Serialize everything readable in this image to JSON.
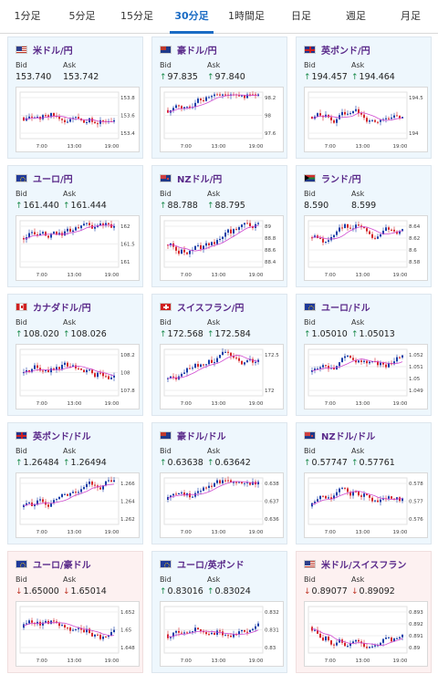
{
  "tabs": [
    "1分足",
    "5分足",
    "15分足",
    "30分足",
    "1時間足",
    "日足",
    "週足",
    "月足"
  ],
  "active_tab": 3,
  "labels": {
    "bid": "Bid",
    "ask": "Ask"
  },
  "x_ticks": [
    "7:00",
    "13:00",
    "19:00"
  ],
  "cards": [
    {
      "pair": "米ドル/円",
      "flag": "us",
      "dir": "none",
      "bid": "153.740",
      "ask": "153.742",
      "yticks": [
        "153.8",
        "153.6",
        "153.4"
      ]
    },
    {
      "pair": "豪ドル/円",
      "flag": "au",
      "dir": "up",
      "bid": "97.835",
      "ask": "97.840",
      "yticks": [
        "98.2",
        "98",
        "97.6"
      ]
    },
    {
      "pair": "英ポンド/円",
      "flag": "gb",
      "dir": "up",
      "bid": "194.457",
      "ask": "194.464",
      "yticks": [
        "194.5",
        "194"
      ]
    },
    {
      "pair": "ユーロ/円",
      "flag": "eu",
      "dir": "up",
      "bid": "161.440",
      "ask": "161.444",
      "yticks": [
        "162",
        "161.5",
        "161"
      ]
    },
    {
      "pair": "NZドル/円",
      "flag": "nz",
      "dir": "up",
      "bid": "88.788",
      "ask": "88.795",
      "yticks": [
        "89",
        "88.8",
        "88.6",
        "88.4"
      ]
    },
    {
      "pair": "ランド/円",
      "flag": "za",
      "dir": "none",
      "bid": "8.590",
      "ask": "8.599",
      "yticks": [
        "8.64",
        "8.62",
        "8.6",
        "8.58"
      ]
    },
    {
      "pair": "カナダドル/円",
      "flag": "ca",
      "dir": "up",
      "bid": "108.020",
      "ask": "108.026",
      "yticks": [
        "108.2",
        "108",
        "107.8"
      ]
    },
    {
      "pair": "スイスフラン/円",
      "flag": "ch",
      "dir": "up",
      "bid": "172.568",
      "ask": "172.584",
      "yticks": [
        "172.5",
        "172"
      ]
    },
    {
      "pair": "ユーロ/ドル",
      "flag": "eu",
      "dir": "up",
      "bid": "1.05010",
      "ask": "1.05013",
      "yticks": [
        "1.052",
        "1.051",
        "1.05",
        "1.049"
      ]
    },
    {
      "pair": "英ポンド/ドル",
      "flag": "gb",
      "dir": "up",
      "bid": "1.26484",
      "ask": "1.26494",
      "yticks": [
        "1.266",
        "1.264",
        "1.262"
      ]
    },
    {
      "pair": "豪ドル/ドル",
      "flag": "au",
      "dir": "up",
      "bid": "0.63638",
      "ask": "0.63642",
      "yticks": [
        "0.638",
        "0.637",
        "0.636"
      ]
    },
    {
      "pair": "NZドル/ドル",
      "flag": "nz",
      "dir": "up",
      "bid": "0.57747",
      "ask": "0.57761",
      "yticks": [
        "0.578",
        "0.577",
        "0.576"
      ]
    },
    {
      "pair": "ユーロ/豪ドル",
      "flag": "eu",
      "dir": "down",
      "bid": "1.65000",
      "ask": "1.65014",
      "yticks": [
        "1.652",
        "1.65",
        "1.648"
      ]
    },
    {
      "pair": "ユーロ/英ポンド",
      "flag": "eu",
      "dir": "up",
      "bid": "0.83016",
      "ask": "0.83024",
      "yticks": [
        "0.832",
        "0.831",
        "0.83"
      ]
    },
    {
      "pair": "米ドル/スイスフラン",
      "flag": "us",
      "dir": "down",
      "bid": "0.89077",
      "ask": "0.89092",
      "yticks": [
        "0.893",
        "0.892",
        "0.891",
        "0.89"
      ]
    }
  ],
  "colors": {
    "up_candle": "#1a3ea8",
    "down_candle": "#d4272b",
    "ma_line": "#d04ad0",
    "line_alt": "#3a9ad9",
    "accent": "#1a6bc4"
  }
}
